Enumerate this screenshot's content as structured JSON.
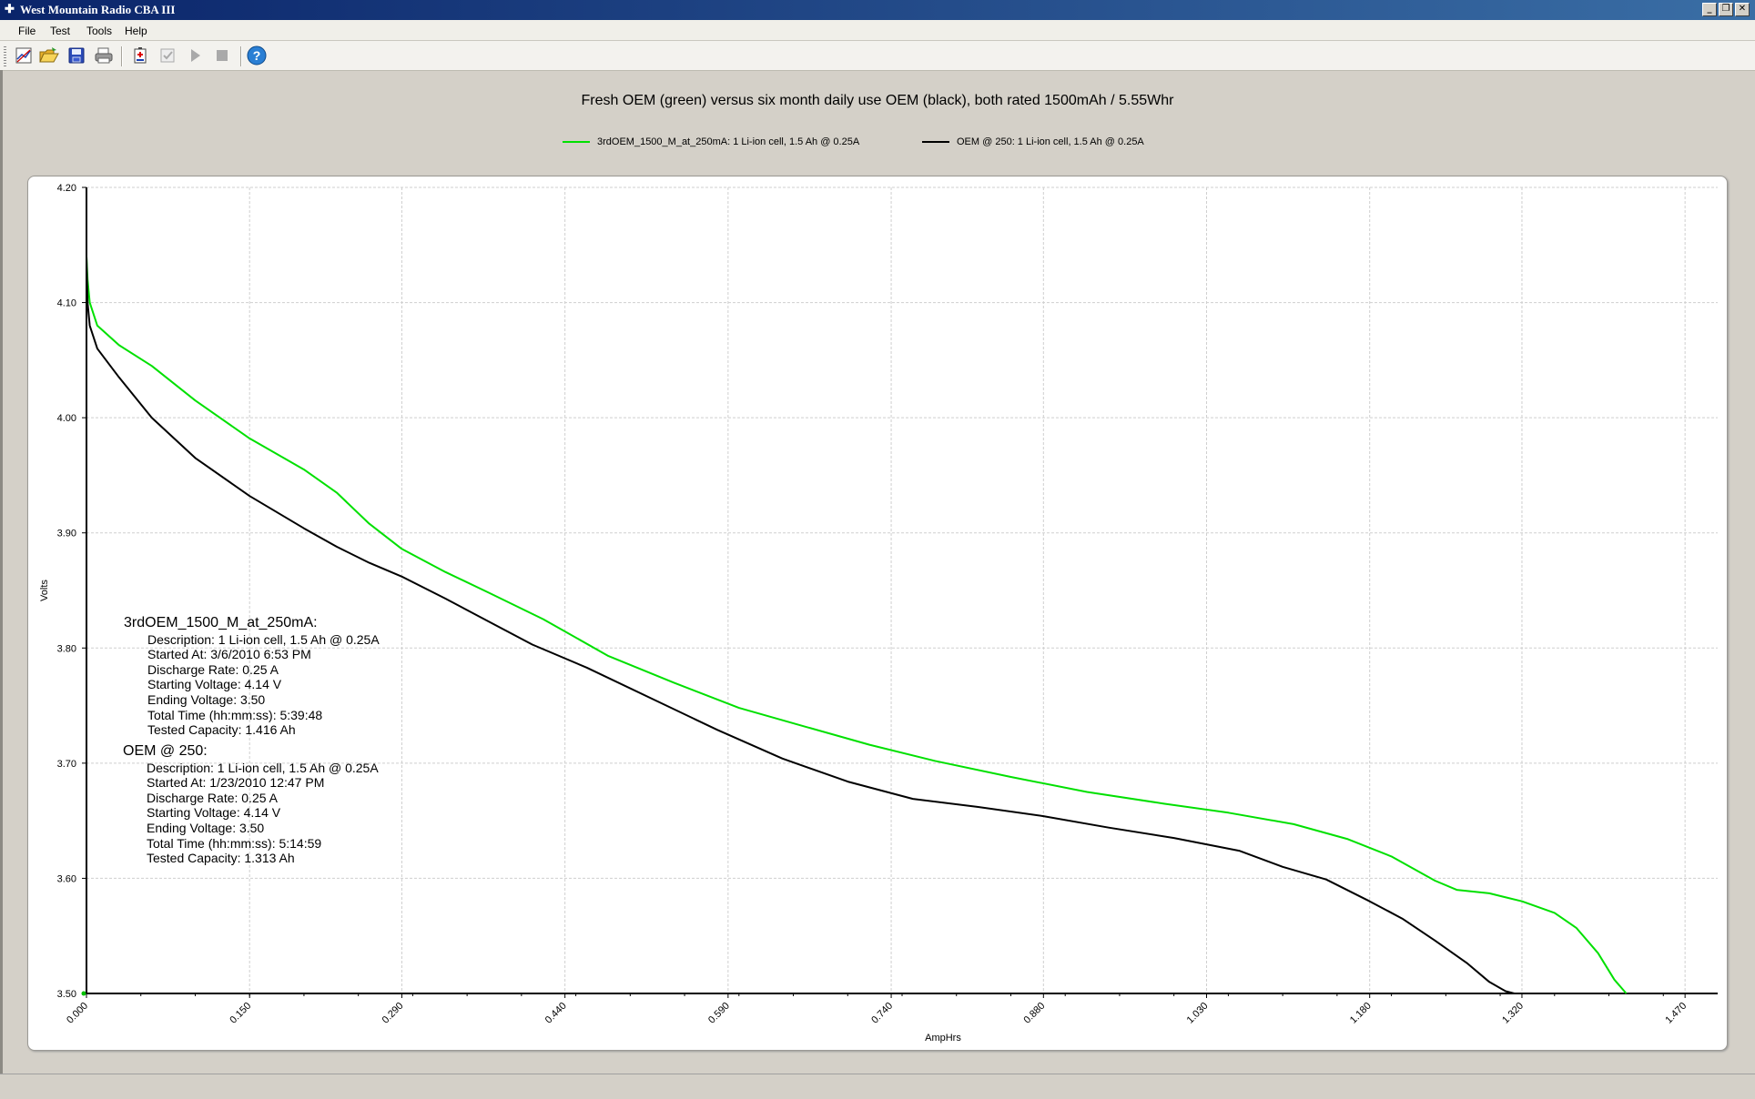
{
  "window": {
    "title": "West Mountain Radio CBA III"
  },
  "menu": [
    "File",
    "Test",
    "Tools",
    "Help"
  ],
  "toolbar": [
    {
      "name": "new-graph-icon",
      "enabled": true
    },
    {
      "name": "open-folder-icon",
      "enabled": true
    },
    {
      "name": "save-icon",
      "enabled": true
    },
    {
      "name": "print-icon",
      "enabled": true
    },
    {
      "name": "add-battery-icon",
      "enabled": true
    },
    {
      "name": "test-settings-icon",
      "enabled": false
    },
    {
      "name": "play-icon",
      "enabled": false
    },
    {
      "name": "stop-icon",
      "enabled": false
    },
    {
      "name": "help-icon",
      "enabled": true
    }
  ],
  "colors": {
    "series1": "#00e000",
    "series2": "#000000",
    "grid": "#cfcfcf"
  },
  "chart_data": {
    "type": "line",
    "title": "Fresh OEM (green) versus six month daily use OEM (black), both rated 1500mAh / 5.55Whr",
    "xlabel": "AmpHrs",
    "ylabel": "Volts",
    "xlim": [
      0,
      1.5
    ],
    "ylim": [
      3.5,
      4.2
    ],
    "xticks": [
      "0.000",
      "0.150",
      "0.290",
      "0.440",
      "0.590",
      "0.740",
      "0.880",
      "1.030",
      "1.180",
      "1.320",
      "1.470"
    ],
    "yticks": [
      "4.20",
      "4.10",
      "4.00",
      "3.90",
      "3.80",
      "3.70",
      "3.60",
      "3.50"
    ],
    "grid": true,
    "legend_position": "top",
    "series": [
      {
        "name": "3rdOEM_1500_M_at_250mA: 1 Li-ion cell, 1.5 Ah @ 0.25A",
        "color": "#00e000",
        "x": [
          0.0,
          0.001,
          0.003,
          0.01,
          0.03,
          0.06,
          0.1,
          0.15,
          0.2,
          0.23,
          0.26,
          0.29,
          0.33,
          0.37,
          0.42,
          0.48,
          0.54,
          0.6,
          0.66,
          0.72,
          0.78,
          0.85,
          0.92,
          0.99,
          1.05,
          1.11,
          1.16,
          1.2,
          1.24,
          1.26,
          1.29,
          1.32,
          1.35,
          1.37,
          1.39,
          1.405,
          1.416
        ],
        "y": [
          4.14,
          4.12,
          4.1,
          4.08,
          4.063,
          4.045,
          4.015,
          3.982,
          3.955,
          3.935,
          3.908,
          3.886,
          3.866,
          3.848,
          3.825,
          3.793,
          3.77,
          3.748,
          3.732,
          3.716,
          3.702,
          3.688,
          3.675,
          3.665,
          3.657,
          3.647,
          3.634,
          3.619,
          3.598,
          3.59,
          3.587,
          3.58,
          3.57,
          3.557,
          3.535,
          3.512,
          3.5
        ]
      },
      {
        "name": "OEM @ 250: 1 Li-ion cell, 1.5 Ah @ 0.25A",
        "color": "#000000",
        "x": [
          0.0,
          0.001,
          0.003,
          0.01,
          0.03,
          0.06,
          0.1,
          0.15,
          0.2,
          0.23,
          0.26,
          0.29,
          0.33,
          0.37,
          0.41,
          0.46,
          0.52,
          0.58,
          0.64,
          0.7,
          0.76,
          0.82,
          0.88,
          0.94,
          1.0,
          1.06,
          1.1,
          1.14,
          1.18,
          1.21,
          1.24,
          1.27,
          1.29,
          1.305,
          1.313
        ],
        "y": [
          4.14,
          4.1,
          4.08,
          4.06,
          4.035,
          4.0,
          3.965,
          3.932,
          3.904,
          3.888,
          3.874,
          3.862,
          3.843,
          3.823,
          3.803,
          3.783,
          3.756,
          3.729,
          3.704,
          3.684,
          3.669,
          3.662,
          3.654,
          3.644,
          3.635,
          3.624,
          3.61,
          3.599,
          3.58,
          3.565,
          3.546,
          3.526,
          3.51,
          3.502,
          3.5
        ]
      }
    ]
  },
  "info_blocks": [
    {
      "header": "3rdOEM_1500_M_at_250mA:",
      "lines": [
        "Description: 1 Li-ion cell, 1.5 Ah @ 0.25A",
        "Started At: 3/6/2010 6:53 PM",
        "Discharge Rate: 0.25 A",
        "Starting Voltage: 4.14 V",
        "Ending Voltage: 3.50",
        "Total Time (hh:mm:ss): 5:39:48",
        "Tested Capacity: 1.416 Ah"
      ]
    },
    {
      "header": "OEM @ 250:",
      "lines": [
        "Description: 1 Li-ion cell, 1.5 Ah @ 0.25A",
        "Started At: 1/23/2010 12:47 PM",
        "Discharge Rate: 0.25 A",
        "Starting Voltage: 4.14 V",
        "Ending Voltage: 3.50",
        "Total Time (hh:mm:ss): 5:14:59",
        "Tested Capacity: 1.313 Ah"
      ]
    }
  ]
}
